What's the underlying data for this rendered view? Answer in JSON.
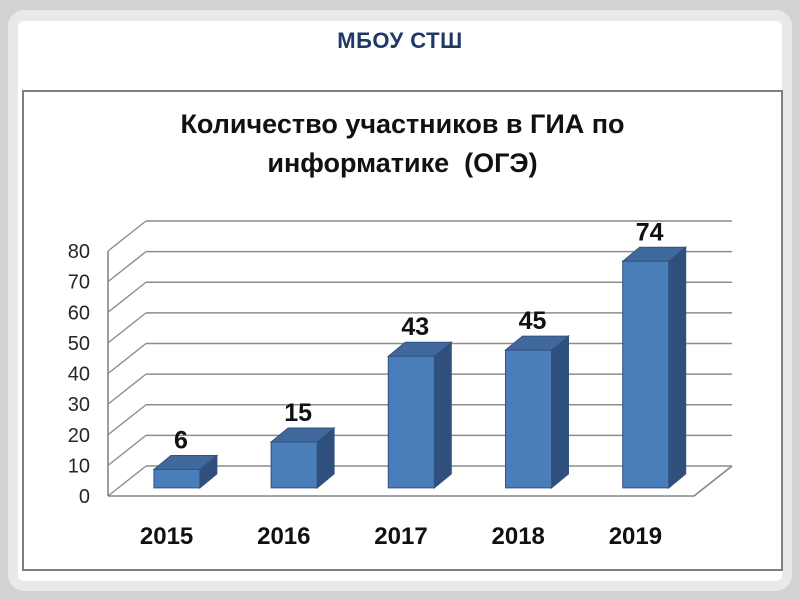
{
  "header": {
    "title": "МБОУ СТШ",
    "color": "#1f3864"
  },
  "chart_data": {
    "type": "bar",
    "style": "3d-column",
    "title": "Количество участников в ГИА по\nинформатике  (ОГЭ)",
    "categories": [
      "2015",
      "2016",
      "2017",
      "2018",
      "2019"
    ],
    "values": [
      6,
      15,
      43,
      45,
      74
    ],
    "data_labels_shown": true,
    "xlabel": "",
    "ylabel": "",
    "ylim": [
      0,
      80
    ],
    "yticks": [
      0,
      10,
      20,
      30,
      40,
      50,
      60,
      70,
      80
    ],
    "grid": true,
    "legend_position": "none",
    "colors": {
      "bar_front": "#4a7ebb",
      "bar_top": "#40689c",
      "bar_side": "#2f4f7d",
      "bar_outline": "#33527e",
      "gridline": "#8c8c8c",
      "title_text": "#111111",
      "label_text": "#111111",
      "tick_text": "#262626"
    }
  }
}
